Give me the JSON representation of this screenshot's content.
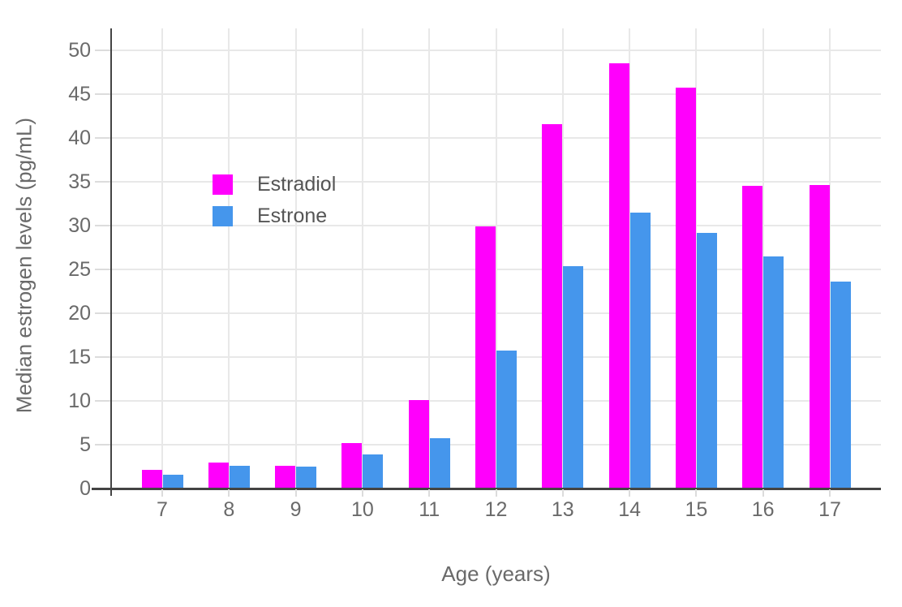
{
  "chart_data": {
    "type": "bar",
    "title": "",
    "xlabel": "Age (years)",
    "ylabel": "Median estrogen levels (pg/mL)",
    "categories": [
      "7",
      "8",
      "9",
      "10",
      "11",
      "12",
      "13",
      "14",
      "15",
      "16",
      "17"
    ],
    "series": [
      {
        "name": "Estradiol",
        "color": "#ff00fc",
        "values": [
          2.1,
          3.0,
          2.6,
          5.2,
          10.1,
          29.9,
          41.6,
          48.5,
          45.7,
          34.5,
          34.6
        ]
      },
      {
        "name": "Estrone",
        "color": "#4596ec",
        "values": [
          1.6,
          2.6,
          2.5,
          3.9,
          5.7,
          15.7,
          25.4,
          31.5,
          29.2,
          26.5,
          23.6
        ]
      }
    ],
    "ylim": [
      0,
      52.5
    ],
    "yticks": [
      0,
      5,
      10,
      15,
      20,
      25,
      30,
      35,
      40,
      45,
      50
    ],
    "grid": true,
    "legend_position": "inside-top-left",
    "colors": {
      "axis_line": "#444444",
      "grid_line": "#e8e8e8",
      "tick_mark": "#dcdcdc",
      "tick_text": "#6a6a6a",
      "background": "#ffffff"
    }
  }
}
